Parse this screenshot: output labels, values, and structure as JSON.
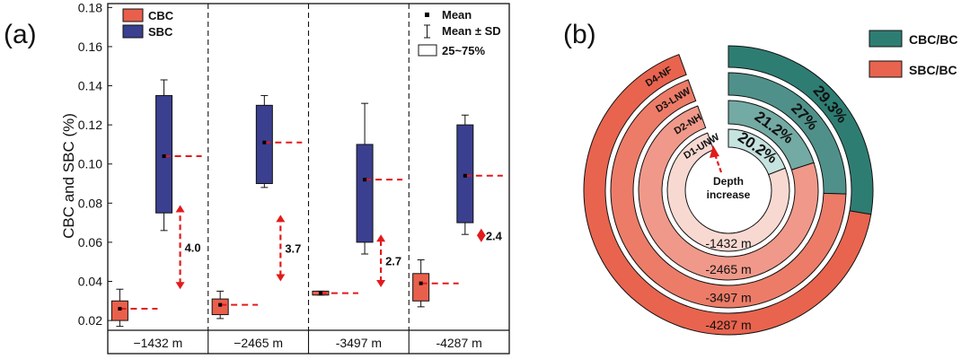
{
  "panel_a": {
    "letter": "(a)",
    "ylabel": "CBC and SBC (%)",
    "legend_series": [
      "CBC",
      "SBC"
    ],
    "legend_stats": [
      "Mean",
      "Mean ± SD",
      "25~75%"
    ]
  },
  "panel_b": {
    "letter": "(b)",
    "legend": [
      "CBC/BC",
      "SBC/BC"
    ],
    "center_label_1": "Depth",
    "center_label_2": "increase"
  },
  "colors": {
    "cbc_box": "#e8604c",
    "sbc_box": "#3b3f8f",
    "cbc_bc": "#2e7d73",
    "sbc_bc": "#e8644f",
    "arrow": "#e31a1c"
  },
  "chart_data": [
    {
      "type": "box",
      "title": "",
      "xlabel": "",
      "ylabel": "CBC and SBC (%)",
      "ylim": [
        0.015,
        0.182
      ],
      "yticks": [
        "0.02",
        "0.04",
        "0.06",
        "0.08",
        "0.10",
        "0.12",
        "0.14",
        "0.16",
        "0.18"
      ],
      "categories": [
        "−1432 m",
        "−2465 m",
        "-3497 m",
        "-4287 m"
      ],
      "series": [
        {
          "name": "CBC",
          "q1": [
            0.02,
            0.023,
            0.033,
            0.03
          ],
          "q3": [
            0.03,
            0.031,
            0.035,
            0.044
          ],
          "mean": [
            0.026,
            0.028,
            0.034,
            0.039
          ],
          "sd_low": [
            0.017,
            0.021,
            0.033,
            0.027
          ],
          "sd_high": [
            0.036,
            0.035,
            0.035,
            0.051
          ]
        },
        {
          "name": "SBC",
          "q1": [
            0.075,
            0.09,
            0.06,
            0.07
          ],
          "q3": [
            0.135,
            0.13,
            0.11,
            0.12
          ],
          "mean": [
            0.104,
            0.111,
            0.092,
            0.094
          ],
          "sd_low": [
            0.066,
            0.088,
            0.054,
            0.064
          ],
          "sd_high": [
            0.143,
            0.135,
            0.131,
            0.125
          ]
        }
      ],
      "ratio_labels": [
        "4.0",
        "3.7",
        "2.7",
        "2.4"
      ],
      "ratio_arrows": [
        [
          0.036,
          0.079
        ],
        [
          0.04,
          0.074
        ],
        [
          0.037,
          0.064
        ],
        [
          0.06,
          0.067
        ]
      ]
    },
    {
      "type": "donut",
      "title": "",
      "rings": [
        "D1-UNW",
        "D2-NH",
        "D3-LNW",
        "D4-NF"
      ],
      "depths": [
        "-1432 m",
        "-2465 m",
        "-3497 m",
        "-4287 m"
      ],
      "series": [
        {
          "name": "CBC/BC",
          "values": [
            20.2,
            21.2,
            27.0,
            29.3
          ],
          "labels": [
            "20.2%",
            "21.2%",
            "27%",
            "29.3%"
          ]
        },
        {
          "name": "SBC/BC",
          "values": [
            79.8,
            78.8,
            73.0,
            70.7
          ]
        }
      ],
      "ring_colors": {
        "cbc": [
          "#c5e3df",
          "#73aaa3",
          "#4f918a",
          "#2e7d73"
        ],
        "sbc": [
          "#f8d9d2",
          "#f0998a",
          "#ec7c68",
          "#e8644f"
        ]
      }
    }
  ]
}
